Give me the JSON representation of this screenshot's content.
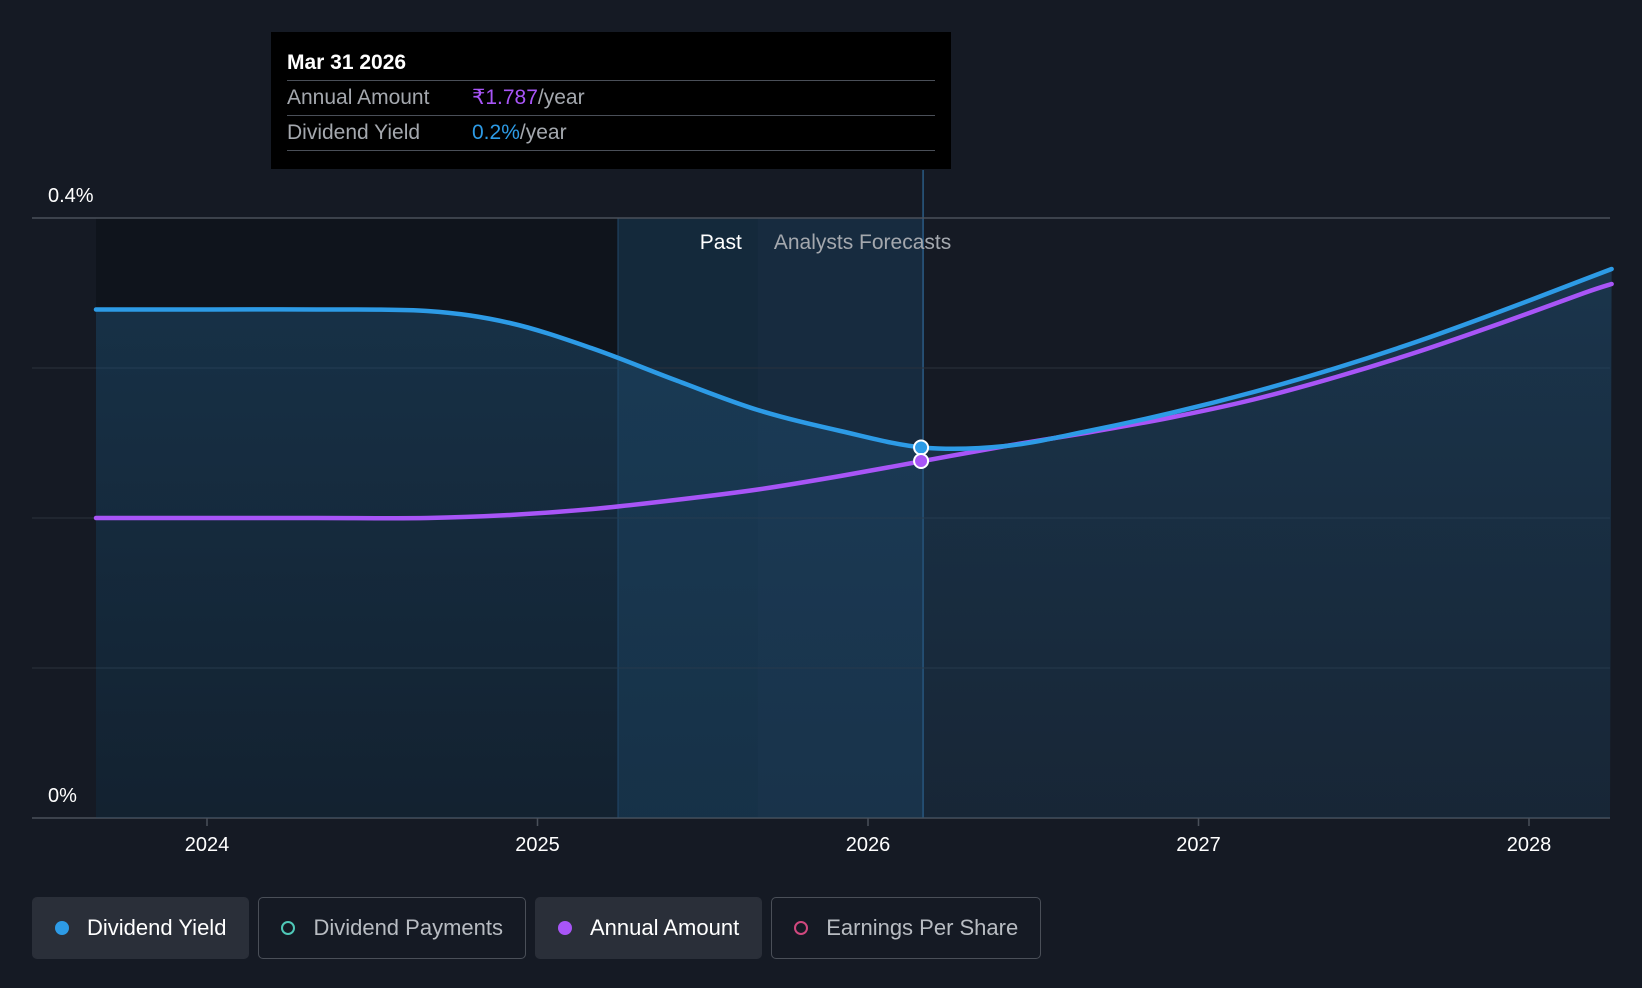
{
  "chart_data": {
    "type": "line",
    "x_ticks": [
      "2024",
      "2025",
      "2026",
      "2027",
      "2028"
    ],
    "y_ticks": [
      "0.4%",
      "0%"
    ],
    "ylim": [
      0,
      0.4
    ],
    "regions": {
      "past_label": "Past",
      "forecast_label": "Analysts Forecasts",
      "past_end": "2025-09"
    },
    "series": [
      {
        "name": "Dividend Yield",
        "color": "#2d9be6",
        "points": [
          [
            "2023-09",
            0.339
          ],
          [
            "2024-01",
            0.339
          ],
          [
            "2024-05",
            0.339
          ],
          [
            "2024-09",
            0.338
          ],
          [
            "2024-12",
            0.33
          ],
          [
            "2025-03",
            0.313
          ],
          [
            "2025-06",
            0.292
          ],
          [
            "2025-09",
            0.272
          ],
          [
            "2025-12",
            0.258
          ],
          [
            "2026-03",
            0.247
          ],
          [
            "2026-06",
            0.248
          ],
          [
            "2026-09",
            0.258
          ],
          [
            "2026-12",
            0.27
          ],
          [
            "2027-03",
            0.284
          ],
          [
            "2027-06",
            0.3
          ],
          [
            "2027-09",
            0.318
          ],
          [
            "2027-12",
            0.338
          ],
          [
            "2028-03",
            0.359
          ],
          [
            "2028-04",
            0.366
          ]
        ]
      },
      {
        "name": "Annual Amount",
        "color": "#a855f7",
        "points": [
          [
            "2023-09",
            0.2
          ],
          [
            "2024-01",
            0.2
          ],
          [
            "2024-05",
            0.2
          ],
          [
            "2024-09",
            0.2
          ],
          [
            "2024-12",
            0.202
          ],
          [
            "2025-03",
            0.206
          ],
          [
            "2025-06",
            0.212
          ],
          [
            "2025-09",
            0.219
          ],
          [
            "2025-12",
            0.228
          ],
          [
            "2026-03",
            0.238
          ],
          [
            "2026-06",
            0.248
          ],
          [
            "2026-09",
            0.257
          ],
          [
            "2026-12",
            0.267
          ],
          [
            "2027-03",
            0.279
          ],
          [
            "2027-06",
            0.294
          ],
          [
            "2027-09",
            0.311
          ],
          [
            "2027-12",
            0.33
          ],
          [
            "2028-03",
            0.35
          ],
          [
            "2028-04",
            0.356
          ]
        ]
      }
    ],
    "highlight": {
      "x": "2026-03",
      "yield": 0.247,
      "annual": 0.238
    }
  },
  "tooltip": {
    "date": "Mar 31 2026",
    "annual_label": "Annual Amount",
    "annual_value": "₹1.787",
    "annual_unit": "/year",
    "yield_label": "Dividend Yield",
    "yield_value": "0.2%",
    "yield_unit": "/year"
  },
  "legend": [
    {
      "label": "Dividend Yield",
      "color": "#2d9be6",
      "active": true
    },
    {
      "label": "Dividend Payments",
      "color": "#4fc8b8",
      "active": false
    },
    {
      "label": "Annual Amount",
      "color": "#a855f7",
      "active": true
    },
    {
      "label": "Earnings Per Share",
      "color": "#d0487e",
      "active": false
    }
  ]
}
